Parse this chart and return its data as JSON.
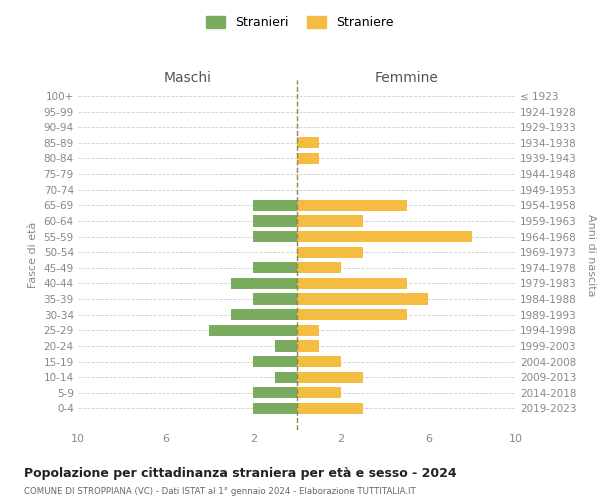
{
  "age_groups": [
    "100+",
    "95-99",
    "90-94",
    "85-89",
    "80-84",
    "75-79",
    "70-74",
    "65-69",
    "60-64",
    "55-59",
    "50-54",
    "45-49",
    "40-44",
    "35-39",
    "30-34",
    "25-29",
    "20-24",
    "15-19",
    "10-14",
    "5-9",
    "0-4"
  ],
  "birth_years": [
    "≤ 1923",
    "1924-1928",
    "1929-1933",
    "1934-1938",
    "1939-1943",
    "1944-1948",
    "1949-1953",
    "1954-1958",
    "1959-1963",
    "1964-1968",
    "1969-1973",
    "1974-1978",
    "1979-1983",
    "1984-1988",
    "1989-1993",
    "1994-1998",
    "1999-2003",
    "2004-2008",
    "2009-2013",
    "2014-2018",
    "2019-2023"
  ],
  "maschi": [
    0,
    0,
    0,
    0,
    0,
    0,
    0,
    2,
    2,
    2,
    0,
    2,
    3,
    2,
    3,
    4,
    1,
    2,
    1,
    2,
    2
  ],
  "femmine": [
    0,
    0,
    0,
    1,
    1,
    0,
    0,
    5,
    3,
    8,
    3,
    2,
    5,
    6,
    5,
    1,
    1,
    2,
    3,
    2,
    3
  ],
  "color_maschi": "#7aab5e",
  "color_femmine": "#f5bc42",
  "color_center_line": "#888850",
  "title": "Popolazione per cittadinanza straniera per età e sesso - 2024",
  "subtitle": "COMUNE DI STROPPIANA (VC) - Dati ISTAT al 1° gennaio 2024 - Elaborazione TUTTITALIA.IT",
  "ylabel_left": "Fasce di età",
  "ylabel_right": "Anni di nascita",
  "xlabel_left": "Maschi",
  "xlabel_right": "Femmine",
  "legend_maschi": "Stranieri",
  "legend_femmine": "Straniere",
  "xlim": 10,
  "background_color": "#ffffff",
  "grid_color": "#cccccc"
}
